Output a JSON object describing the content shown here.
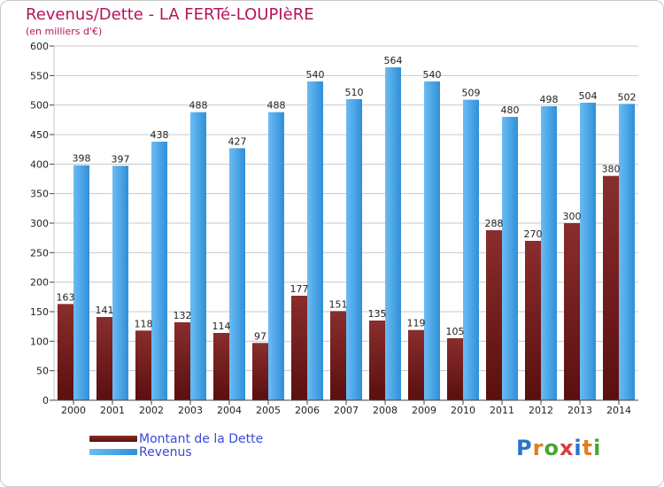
{
  "header": {
    "title": "Revenus/Dette - LA FERTé-LOUPIèRE",
    "subtitle": "(en milliers d'€)"
  },
  "legend": {
    "items": [
      {
        "label": "Montant de la Dette",
        "color": "#6e1717"
      },
      {
        "label": "Revenus",
        "color": "#4aa3e8"
      }
    ]
  },
  "brand": {
    "logo_text": "Proxiti"
  },
  "colors": {
    "debt_dark": "#5a0f0f",
    "debt_light": "#8a2d2d",
    "revenue_dark": "#2f8fd8",
    "revenue_light": "#6bbcf3",
    "grid": "#c8c8c8",
    "axis_text": "#222222",
    "title": "#b4155a"
  },
  "chart_data": {
    "type": "bar",
    "categories": [
      "2000",
      "2001",
      "2002",
      "2003",
      "2004",
      "2005",
      "2006",
      "2007",
      "2008",
      "2009",
      "2010",
      "2011",
      "2012",
      "2013",
      "2014"
    ],
    "series": [
      {
        "name": "Montant de la Dette",
        "values": [
          163,
          141,
          118,
          132,
          114,
          97,
          177,
          151,
          135,
          119,
          105,
          288,
          270,
          300,
          380
        ],
        "labels": [
          "163",
          "141",
          "118",
          "132",
          "114",
          "97",
          "177",
          "151",
          "135",
          "119",
          "105",
          "288",
          "270",
          "300",
          "380"
        ]
      },
      {
        "name": "Revenus",
        "values": [
          398,
          397,
          438,
          488,
          427,
          488,
          540,
          510,
          564,
          540,
          509,
          480,
          498,
          504,
          502
        ],
        "labels": [
          "398",
          "397",
          "438",
          "488",
          "427",
          "488",
          "540",
          "510",
          "564",
          "540",
          "509",
          "480",
          "498",
          "504",
          "502"
        ]
      }
    ],
    "title": "Revenus/Dette - LA FERTé-LOUPIèRE",
    "subtitle": "(en milliers d'€)",
    "xlabel": "",
    "ylabel": "",
    "ylim": [
      0,
      600
    ],
    "yticks": [
      0,
      50,
      100,
      150,
      200,
      250,
      300,
      350,
      400,
      450,
      500,
      550,
      600
    ],
    "grid": true,
    "legend_position": "bottom-left"
  }
}
